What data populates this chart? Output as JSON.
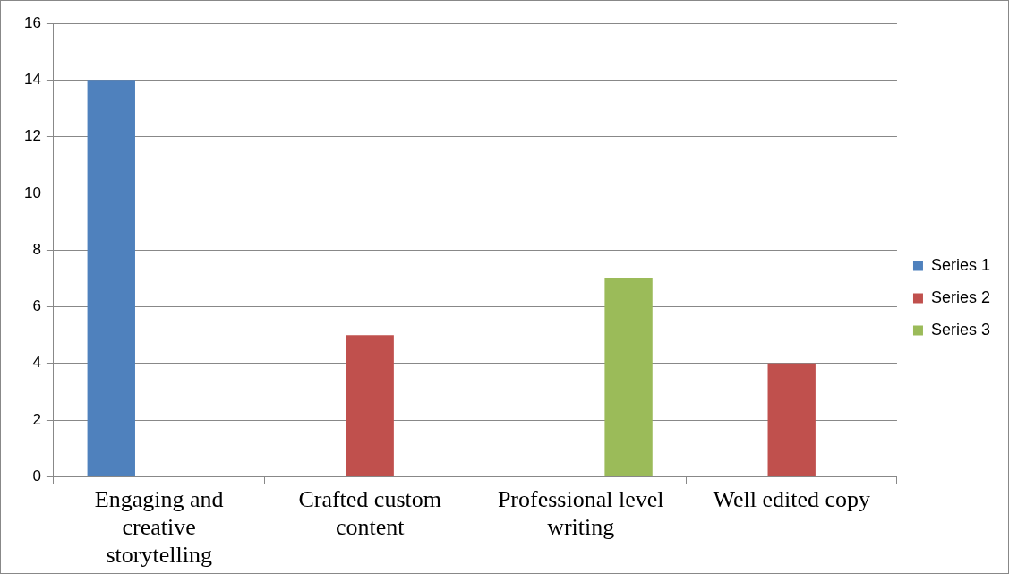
{
  "chart_data": {
    "type": "bar",
    "categories": [
      "Engaging and creative storytelling",
      "Crafted custom content",
      "Professional level writing",
      "Well edited copy"
    ],
    "series": [
      {
        "name": "Series 1",
        "color": "#4f81bd",
        "values": [
          14,
          null,
          null,
          null
        ]
      },
      {
        "name": "Series 2",
        "color": "#c0504d",
        "values": [
          null,
          5,
          null,
          4
        ]
      },
      {
        "name": "Series 3",
        "color": "#9bbb59",
        "values": [
          null,
          null,
          7,
          null
        ]
      }
    ],
    "ylim": [
      0,
      16
    ],
    "yticks": [
      0,
      2,
      4,
      6,
      8,
      10,
      12,
      14,
      16
    ],
    "grid": "y",
    "legend": "right"
  }
}
